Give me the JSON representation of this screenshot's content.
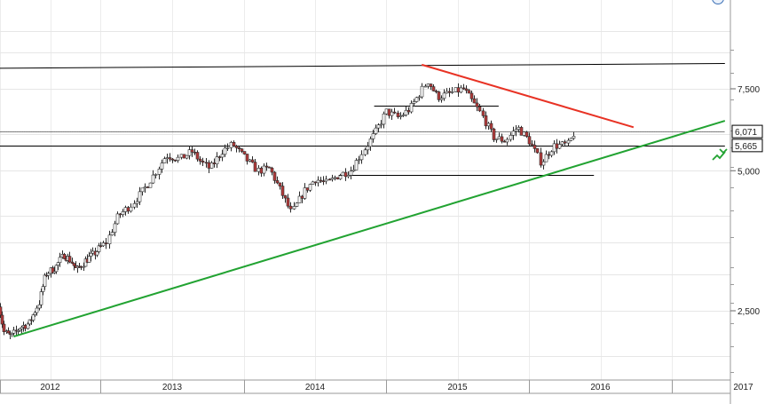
{
  "chart_data": {
    "type": "candlestick",
    "y_scale": "log",
    "grid": true,
    "ylim": [
      1500,
      10500
    ],
    "y_ticks": [
      {
        "value": 2500,
        "label": "2,500"
      },
      {
        "value": 5000,
        "label": "5,000"
      },
      {
        "value": 7500,
        "label": "7,500"
      }
    ],
    "x_ticks": [
      "2012",
      "2013",
      "2014",
      "2015",
      "2016",
      "2017"
    ],
    "price_labels": [
      {
        "value": 6071,
        "label": "6,071",
        "color": "#000000"
      },
      {
        "value": 5665,
        "label": "5,665",
        "color": "#000000"
      }
    ],
    "price_path": [
      [
        "2011-12-25",
        2600
      ],
      [
        "2012-01-15",
        2250
      ],
      [
        "2012-02-10",
        2200
      ],
      [
        "2012-03-10",
        2300
      ],
      [
        "2012-04-15",
        2350
      ],
      [
        "2012-05-20",
        2600
      ],
      [
        "2012-06-15",
        3000
      ],
      [
        "2012-07-20",
        3100
      ],
      [
        "2012-08-20",
        3300
      ],
      [
        "2012-09-15",
        3200
      ],
      [
        "2012-10-05",
        3050
      ],
      [
        "2012-11-05",
        3200
      ],
      [
        "2012-12-05",
        3300
      ],
      [
        "2013-01-15",
        3500
      ],
      [
        "2013-02-15",
        4000
      ],
      [
        "2013-03-15",
        4200
      ],
      [
        "2013-04-15",
        4500
      ],
      [
        "2013-05-15",
        4900
      ],
      [
        "2013-06-15",
        5400
      ],
      [
        "2013-07-20",
        5300
      ],
      [
        "2013-08-20",
        5500
      ],
      [
        "2013-09-15",
        5200
      ],
      [
        "2013-10-05",
        5050
      ],
      [
        "2013-11-05",
        5500
      ],
      [
        "2013-12-01",
        5700
      ],
      [
        "2014-01-05",
        5300
      ],
      [
        "2014-02-05",
        5000
      ],
      [
        "2014-03-05",
        5050
      ],
      [
        "2014-04-05",
        4500
      ],
      [
        "2014-05-01",
        4050
      ],
      [
        "2014-06-01",
        4500
      ],
      [
        "2014-07-01",
        4800
      ],
      [
        "2014-08-01",
        4700
      ],
      [
        "2014-09-01",
        4900
      ],
      [
        "2014-10-01",
        5000
      ],
      [
        "2014-11-01",
        5500
      ],
      [
        "2014-12-01",
        6000
      ],
      [
        "2015-01-01",
        6700
      ],
      [
        "2015-02-01",
        6500
      ],
      [
        "2015-03-01",
        6800
      ],
      [
        "2015-04-15",
        7800
      ],
      [
        "2015-05-10",
        7200
      ],
      [
        "2015-06-05",
        7300
      ],
      [
        "2015-07-15",
        7500
      ],
      [
        "2015-08-10",
        7000
      ],
      [
        "2015-09-01",
        6600
      ],
      [
        "2015-10-01",
        5900
      ],
      [
        "2015-11-01",
        5800
      ],
      [
        "2015-12-01",
        6200
      ],
      [
        "2016-01-01",
        5800
      ],
      [
        "2016-02-01",
        5200
      ],
      [
        "2016-03-01",
        5650
      ],
      [
        "2016-04-10",
        5700
      ],
      [
        "2016-04-25",
        6071
      ]
    ],
    "horizontal_lines": [
      {
        "value": 6071,
        "from": "2011-12-01",
        "to": "2017-05-15",
        "color": "#000000",
        "style": "dotted"
      },
      {
        "value": 5665,
        "from": "2011-12-01",
        "to": "2017-05-15",
        "color": "#000000",
        "style": "solid"
      },
      {
        "value": 6900,
        "from": "2014-12-01",
        "to": "2015-10-15",
        "color": "#000000",
        "style": "solid"
      },
      {
        "value": 4900,
        "from": "2014-09-01",
        "to": "2016-06-15",
        "color": "#000000",
        "style": "solid"
      }
    ],
    "trend_lines": [
      {
        "from": [
          "2011-12-01",
          8300
        ],
        "to": [
          "2017-05-15",
          8500
        ],
        "color": "#000000"
      },
      {
        "from": [
          "2015-04-01",
          8450
        ],
        "to": [
          "2016-09-25",
          6200
        ],
        "color": "#e83224"
      },
      {
        "from": [
          "2012-02-20",
          2200
        ],
        "to": [
          "2017-05-15",
          6400
        ],
        "color": "#22a332"
      }
    ]
  },
  "icons": {
    "toolbar": "circle-menu-icon",
    "alert": "price-alert-icon"
  }
}
